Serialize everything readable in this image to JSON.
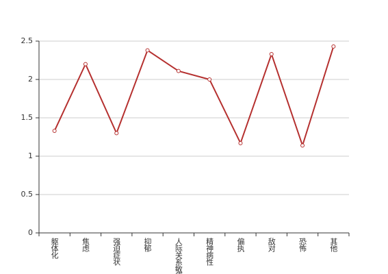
{
  "chart_data": {
    "type": "line",
    "categories": [
      "躯体化",
      "焦虑",
      "强迫症状",
      "抑郁",
      "人际关系敏感",
      "精神病性",
      "偏执",
      "敌对",
      "恐怖",
      "其他"
    ],
    "series": [
      {
        "color": "#b5302f",
        "values": [
          1.33,
          2.2,
          1.3,
          2.38,
          2.11,
          2.0,
          1.17,
          2.33,
          1.14,
          2.43
        ]
      }
    ],
    "ylim": [
      0,
      2.5
    ],
    "yticks": [
      0,
      0.5,
      1,
      1.5,
      2,
      2.5
    ],
    "grid": true
  }
}
